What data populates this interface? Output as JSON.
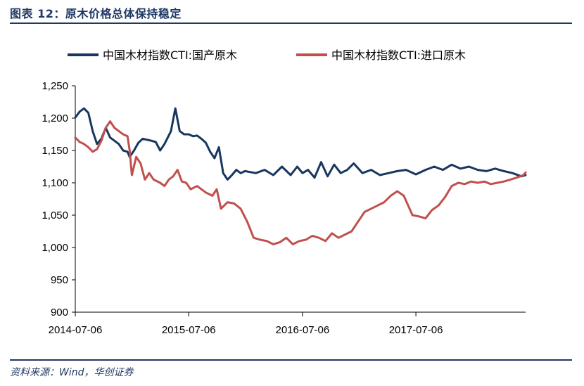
{
  "header": {
    "title": "图表 12：原木价格总体保持稳定"
  },
  "footer": {
    "source": "资料来源：Wind，华创证券"
  },
  "chart_data": {
    "type": "line",
    "title": "图表 12：原木价格总体保持稳定",
    "xlabel": "",
    "ylabel": "",
    "x_ticks": [
      "2014-07-06",
      "2015-07-06",
      "2016-07-06",
      "2017-07-06"
    ],
    "y_ticks": [
      "900",
      "950",
      "1,000",
      "1,050",
      "1,100",
      "1,150",
      "1,200",
      "1,250"
    ],
    "ylim": [
      900,
      1250
    ],
    "xlim": [
      "2014-07-06",
      "2018-06-24"
    ],
    "grid": false,
    "legend_position": "top",
    "series": [
      {
        "name": "中国木材指数CTI:国产原木",
        "color": "#17375e",
        "points": [
          [
            "2014-07-06",
            1201
          ],
          [
            "2014-07-20",
            1210
          ],
          [
            "2014-08-03",
            1215
          ],
          [
            "2014-08-17",
            1208
          ],
          [
            "2014-08-31",
            1180
          ],
          [
            "2014-09-14",
            1160
          ],
          [
            "2014-09-28",
            1168
          ],
          [
            "2014-10-12",
            1185
          ],
          [
            "2014-10-26",
            1170
          ],
          [
            "2014-11-09",
            1165
          ],
          [
            "2014-11-23",
            1160
          ],
          [
            "2014-12-07",
            1150
          ],
          [
            "2014-12-21",
            1148
          ],
          [
            "2014-12-28",
            1140
          ],
          [
            "2015-01-11",
            1150
          ],
          [
            "2015-01-25",
            1162
          ],
          [
            "2015-02-08",
            1168
          ],
          [
            "2015-03-08",
            1165
          ],
          [
            "2015-03-22",
            1163
          ],
          [
            "2015-04-05",
            1150
          ],
          [
            "2015-04-19",
            1160
          ],
          [
            "2015-05-10",
            1180
          ],
          [
            "2015-05-24",
            1215
          ],
          [
            "2015-06-07",
            1180
          ],
          [
            "2015-06-21",
            1175
          ],
          [
            "2015-07-06",
            1175
          ],
          [
            "2015-07-20",
            1172
          ],
          [
            "2015-08-02",
            1173
          ],
          [
            "2015-08-16",
            1168
          ],
          [
            "2015-08-30",
            1162
          ],
          [
            "2015-09-13",
            1148
          ],
          [
            "2015-09-27",
            1138
          ],
          [
            "2015-10-11",
            1155
          ],
          [
            "2015-10-25",
            1115
          ],
          [
            "2015-11-08",
            1105
          ],
          [
            "2015-11-22",
            1112
          ],
          [
            "2015-12-06",
            1120
          ],
          [
            "2015-12-20",
            1115
          ],
          [
            "2016-01-03",
            1118
          ],
          [
            "2016-02-07",
            1115
          ],
          [
            "2016-03-06",
            1120
          ],
          [
            "2016-04-03",
            1112
          ],
          [
            "2016-05-01",
            1125
          ],
          [
            "2016-05-29",
            1112
          ],
          [
            "2016-06-19",
            1125
          ],
          [
            "2016-07-06",
            1115
          ],
          [
            "2016-07-24",
            1120
          ],
          [
            "2016-08-14",
            1108
          ],
          [
            "2016-09-04",
            1132
          ],
          [
            "2016-09-25",
            1110
          ],
          [
            "2016-10-16",
            1128
          ],
          [
            "2016-11-06",
            1115
          ],
          [
            "2016-11-27",
            1120
          ],
          [
            "2016-12-18",
            1130
          ],
          [
            "2017-01-15",
            1115
          ],
          [
            "2017-02-12",
            1120
          ],
          [
            "2017-03-12",
            1112
          ],
          [
            "2017-04-09",
            1115
          ],
          [
            "2017-05-07",
            1118
          ],
          [
            "2017-06-04",
            1120
          ],
          [
            "2017-07-06",
            1113
          ],
          [
            "2017-08-06",
            1120
          ],
          [
            "2017-09-03",
            1125
          ],
          [
            "2017-10-01",
            1120
          ],
          [
            "2017-10-29",
            1128
          ],
          [
            "2017-11-26",
            1122
          ],
          [
            "2017-12-24",
            1125
          ],
          [
            "2018-01-21",
            1120
          ],
          [
            "2018-02-18",
            1118
          ],
          [
            "2018-03-18",
            1122
          ],
          [
            "2018-04-15",
            1118
          ],
          [
            "2018-05-13",
            1115
          ],
          [
            "2018-06-10",
            1110
          ],
          [
            "2018-06-24",
            1112
          ]
        ]
      },
      {
        "name": "中国木材指数CTI:进口原木",
        "color": "#c0504d",
        "points": [
          [
            "2014-07-06",
            1170
          ],
          [
            "2014-07-20",
            1163
          ],
          [
            "2014-08-03",
            1160
          ],
          [
            "2014-08-17",
            1155
          ],
          [
            "2014-08-31",
            1148
          ],
          [
            "2014-09-14",
            1152
          ],
          [
            "2014-09-28",
            1165
          ],
          [
            "2014-10-12",
            1185
          ],
          [
            "2014-10-26",
            1195
          ],
          [
            "2014-11-09",
            1185
          ],
          [
            "2014-11-23",
            1180
          ],
          [
            "2014-12-07",
            1175
          ],
          [
            "2014-12-21",
            1172
          ],
          [
            "2014-12-28",
            1150
          ],
          [
            "2015-01-04",
            1112
          ],
          [
            "2015-01-18",
            1140
          ],
          [
            "2015-02-01",
            1130
          ],
          [
            "2015-02-15",
            1105
          ],
          [
            "2015-03-01",
            1115
          ],
          [
            "2015-03-15",
            1105
          ],
          [
            "2015-04-05",
            1100
          ],
          [
            "2015-04-19",
            1095
          ],
          [
            "2015-05-03",
            1105
          ],
          [
            "2015-05-17",
            1110
          ],
          [
            "2015-05-31",
            1120
          ],
          [
            "2015-06-14",
            1102
          ],
          [
            "2015-06-28",
            1100
          ],
          [
            "2015-07-12",
            1090
          ],
          [
            "2015-08-02",
            1095
          ],
          [
            "2015-08-30",
            1085
          ],
          [
            "2015-09-20",
            1080
          ],
          [
            "2015-10-04",
            1090
          ],
          [
            "2015-10-18",
            1060
          ],
          [
            "2015-11-08",
            1070
          ],
          [
            "2015-11-29",
            1068
          ],
          [
            "2015-12-20",
            1060
          ],
          [
            "2016-01-10",
            1040
          ],
          [
            "2016-01-31",
            1015
          ],
          [
            "2016-02-21",
            1012
          ],
          [
            "2016-03-13",
            1010
          ],
          [
            "2016-04-03",
            1005
          ],
          [
            "2016-04-24",
            1008
          ],
          [
            "2016-05-15",
            1015
          ],
          [
            "2016-06-05",
            1005
          ],
          [
            "2016-06-26",
            1010
          ],
          [
            "2016-07-17",
            1012
          ],
          [
            "2016-08-07",
            1018
          ],
          [
            "2016-08-28",
            1015
          ],
          [
            "2016-09-18",
            1010
          ],
          [
            "2016-10-09",
            1022
          ],
          [
            "2016-10-30",
            1015
          ],
          [
            "2016-11-20",
            1020
          ],
          [
            "2016-12-11",
            1025
          ],
          [
            "2017-01-01",
            1040
          ],
          [
            "2017-01-22",
            1055
          ],
          [
            "2017-02-12",
            1060
          ],
          [
            "2017-03-05",
            1065
          ],
          [
            "2017-03-26",
            1070
          ],
          [
            "2017-04-16",
            1080
          ],
          [
            "2017-05-07",
            1087
          ],
          [
            "2017-05-28",
            1080
          ],
          [
            "2017-06-11",
            1065
          ],
          [
            "2017-06-25",
            1050
          ],
          [
            "2017-07-16",
            1048
          ],
          [
            "2017-08-06",
            1045
          ],
          [
            "2017-08-27",
            1058
          ],
          [
            "2017-09-17",
            1065
          ],
          [
            "2017-10-08",
            1078
          ],
          [
            "2017-10-29",
            1095
          ],
          [
            "2017-11-19",
            1100
          ],
          [
            "2017-12-10",
            1098
          ],
          [
            "2017-12-31",
            1102
          ],
          [
            "2018-01-21",
            1100
          ],
          [
            "2018-02-11",
            1102
          ],
          [
            "2018-03-04",
            1098
          ],
          [
            "2018-03-25",
            1100
          ],
          [
            "2018-04-15",
            1102
          ],
          [
            "2018-05-06",
            1105
          ],
          [
            "2018-05-27",
            1108
          ],
          [
            "2018-06-17",
            1112
          ],
          [
            "2018-06-24",
            1116
          ]
        ]
      }
    ]
  }
}
